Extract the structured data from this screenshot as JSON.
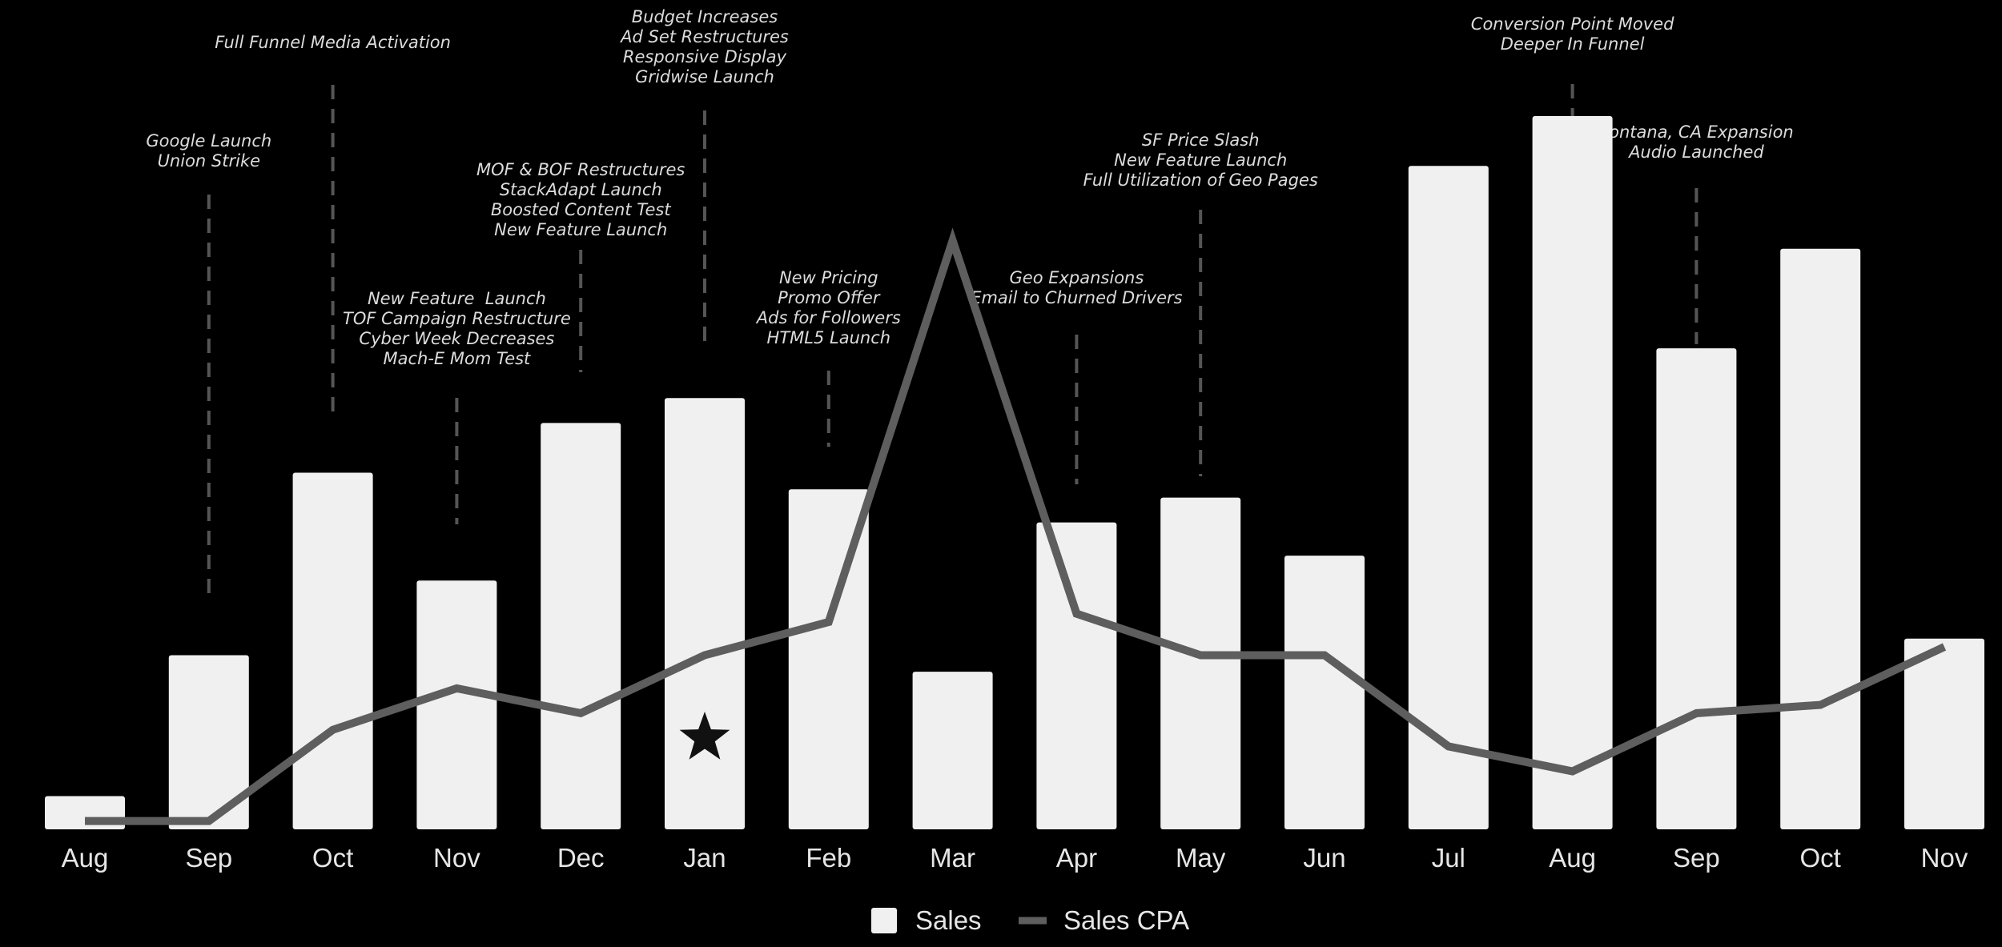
{
  "chart_data": {
    "type": "bar",
    "categories": [
      "Aug",
      "Sep",
      "Oct",
      "Nov",
      "Dec",
      "Jan",
      "Feb",
      "Mar",
      "Apr",
      "May",
      "Jun",
      "Jul",
      "Aug",
      "Sep",
      "Oct",
      "Nov"
    ],
    "series": [
      {
        "name": "Sales",
        "type": "bar",
        "values": [
          4,
          21,
          43,
          30,
          49,
          52,
          41,
          19,
          37,
          40,
          33,
          80,
          86,
          58,
          70,
          23
        ]
      },
      {
        "name": "Sales CPA",
        "type": "line",
        "values": [
          1,
          1,
          12,
          17,
          14,
          21,
          25,
          71,
          26,
          21,
          21,
          10,
          7,
          14,
          15,
          22
        ]
      }
    ],
    "ylim": [
      0,
      100
    ],
    "grid": false,
    "legend": "bottom-center",
    "colors": {
      "bar": "#f0f0f0",
      "line": "#5e5e5e",
      "background": "#000000",
      "annotation_line": "#555555"
    },
    "markers": [
      {
        "category_index": 5,
        "symbol": "star-icon"
      }
    ],
    "annotations": [
      {
        "category_index": 1,
        "lines": [
          "Google Launch",
          "Union Strike"
        ]
      },
      {
        "category_index": 2,
        "lines": [
          "Full Funnel Media Activation"
        ]
      },
      {
        "category_index": 3,
        "lines": [
          "New Feature  Launch",
          "TOF Campaign Restructure",
          "Cyber Week Decreases",
          "Mach-E Mom Test"
        ]
      },
      {
        "category_index": 4,
        "lines": [
          "MOF & BOF Restructures",
          "StackAdapt Launch",
          "Boosted Content Test",
          "New Feature Launch"
        ]
      },
      {
        "category_index": 5,
        "lines": [
          "Budget Increases",
          "Ad Set Restructures",
          "Responsive Display",
          "Gridwise Launch"
        ]
      },
      {
        "category_index": 6,
        "lines": [
          "New Pricing",
          "Promo Offer",
          "Ads for Followers",
          "HTML5 Launch"
        ]
      },
      {
        "category_index": 8,
        "lines": [
          "Geo Expansions",
          "Email to Churned Drivers"
        ]
      },
      {
        "category_index": 9,
        "lines": [
          "SF Price Slash",
          "New Feature Launch",
          "Full Utilization of Geo Pages"
        ]
      },
      {
        "category_index": 12,
        "lines": [
          "Conversion Point Moved",
          "Deeper In Funnel"
        ]
      },
      {
        "category_index": 13,
        "lines": [
          "Fontana, CA Expansion",
          "Audio Launched"
        ]
      }
    ]
  }
}
